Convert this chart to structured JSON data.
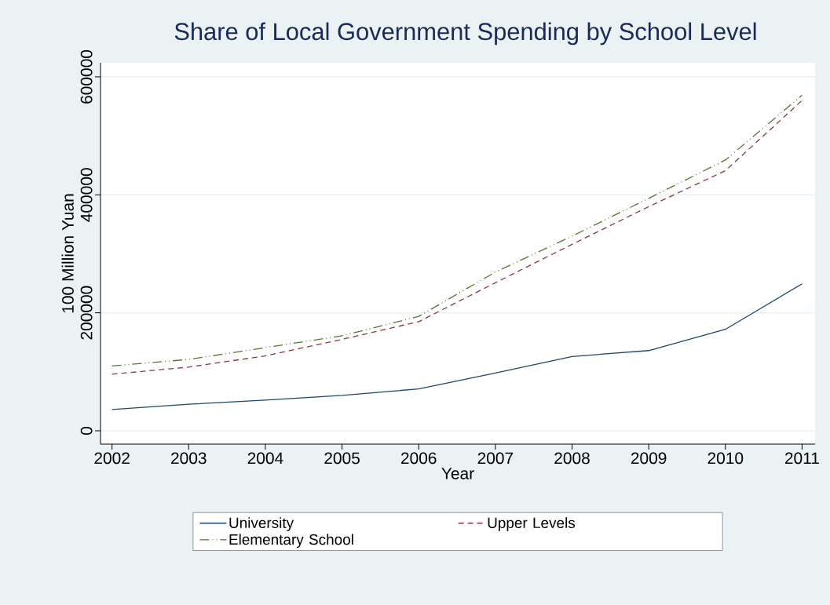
{
  "chart_data": {
    "type": "line",
    "title": "Share of Local Government Spending by School Level",
    "xlabel": "Year",
    "ylabel": "100 Million Yuan",
    "x": [
      2002,
      2003,
      2004,
      2005,
      2006,
      2007,
      2008,
      2009,
      2010,
      2011
    ],
    "series": [
      {
        "name": "University",
        "color": "#1a476f",
        "line_style": "solid",
        "values": [
          36000,
          45000,
          52000,
          60000,
          71000,
          98000,
          126000,
          136000,
          172000,
          249000
        ]
      },
      {
        "name": "Upper Levels",
        "color": "#90353b",
        "line_style": "dashed",
        "values": [
          96000,
          108000,
          127000,
          155000,
          185000,
          251000,
          316000,
          380000,
          441000,
          560000
        ]
      },
      {
        "name": "Elementary School",
        "color": "#55752f",
        "line_style": "dashdot",
        "values": [
          110000,
          121000,
          141000,
          161000,
          194000,
          269000,
          330000,
          394000,
          459000,
          569000
        ]
      }
    ],
    "xlim": [
      2001.85,
      2011.17
    ],
    "ylim": [
      -22600,
      623900
    ],
    "xticks": [
      2002,
      2003,
      2004,
      2005,
      2006,
      2007,
      2008,
      2009,
      2010,
      2011
    ],
    "yticks": [
      0,
      200000,
      400000,
      600000
    ],
    "grid": "y",
    "legend": "bottom"
  }
}
